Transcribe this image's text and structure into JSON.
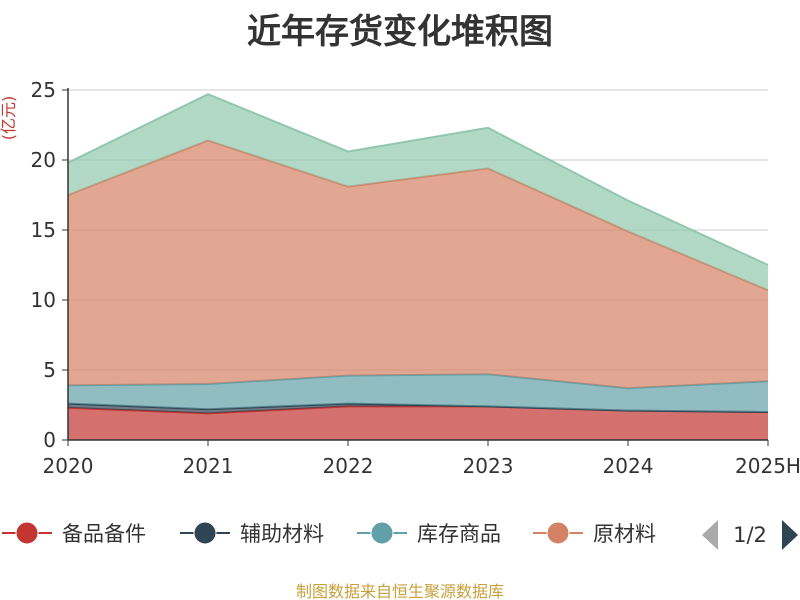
{
  "title": "近年存货变化堆积图",
  "source_note": "制图数据来自恒生聚源数据库",
  "pagination": {
    "text": "1/2"
  },
  "chart_data": {
    "type": "area",
    "stacked": true,
    "title": "近年存货变化堆积图",
    "ylabel": "(亿元)",
    "xlabel": "",
    "categories": [
      "2020",
      "2021",
      "2022",
      "2023",
      "2024",
      "2025H"
    ],
    "ylim": [
      0,
      25
    ],
    "yticks": [
      0,
      5,
      10,
      15,
      20,
      25
    ],
    "grid": true,
    "legend_position": "bottom",
    "series": [
      {
        "name": "备品备件",
        "color": "#c23531",
        "values": [
          2.3,
          1.9,
          2.4,
          2.4,
          2.1,
          2.0
        ]
      },
      {
        "name": "辅助材料",
        "color": "#2f4554",
        "values": [
          0.3,
          0.3,
          0.2,
          0.0,
          0.0,
          0.0
        ]
      },
      {
        "name": "库存商品",
        "color": "#61a0a8",
        "values": [
          1.3,
          1.8,
          2.0,
          2.3,
          1.6,
          2.2
        ]
      },
      {
        "name": "原材料",
        "color": "#d48265",
        "values": [
          13.6,
          17.4,
          13.5,
          14.7,
          11.2,
          6.5
        ]
      },
      {
        "name": "",
        "color": "#91c7ae",
        "values": [
          2.3,
          3.3,
          2.5,
          2.9,
          2.2,
          1.8
        ]
      }
    ]
  }
}
